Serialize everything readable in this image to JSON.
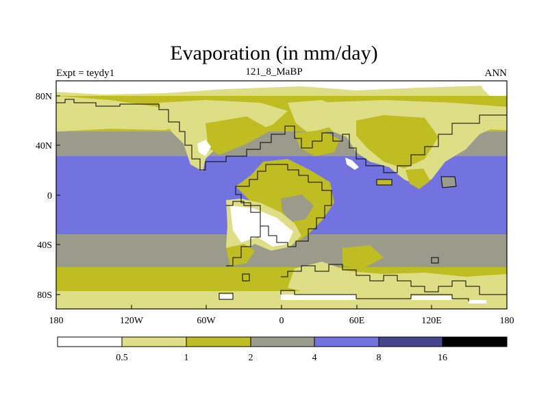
{
  "title": "Evaporation (in mm/day)",
  "left_label": "Expt = teydy1",
  "center_label": "121_8_MaBP",
  "right_label": "ANN",
  "y_ticks": [
    "80N",
    "40N",
    "0",
    "40S",
    "80S"
  ],
  "x_ticks": [
    "180",
    "120W",
    "60W",
    "0",
    "60E",
    "120E",
    "180"
  ],
  "legend": {
    "labels": [
      "0.5",
      "1",
      "2",
      "4",
      "8",
      "16"
    ],
    "colors": [
      "#ffffff",
      "#dede86",
      "#bfbd22",
      "#9b9b8c",
      "#7373e0",
      "#45458f",
      "#000000"
    ]
  },
  "colors": {
    "white": "#ffffff",
    "pale": "#dede86",
    "olive": "#bfbd22",
    "gray": "#9b9b8c",
    "blue": "#7373e0"
  }
}
